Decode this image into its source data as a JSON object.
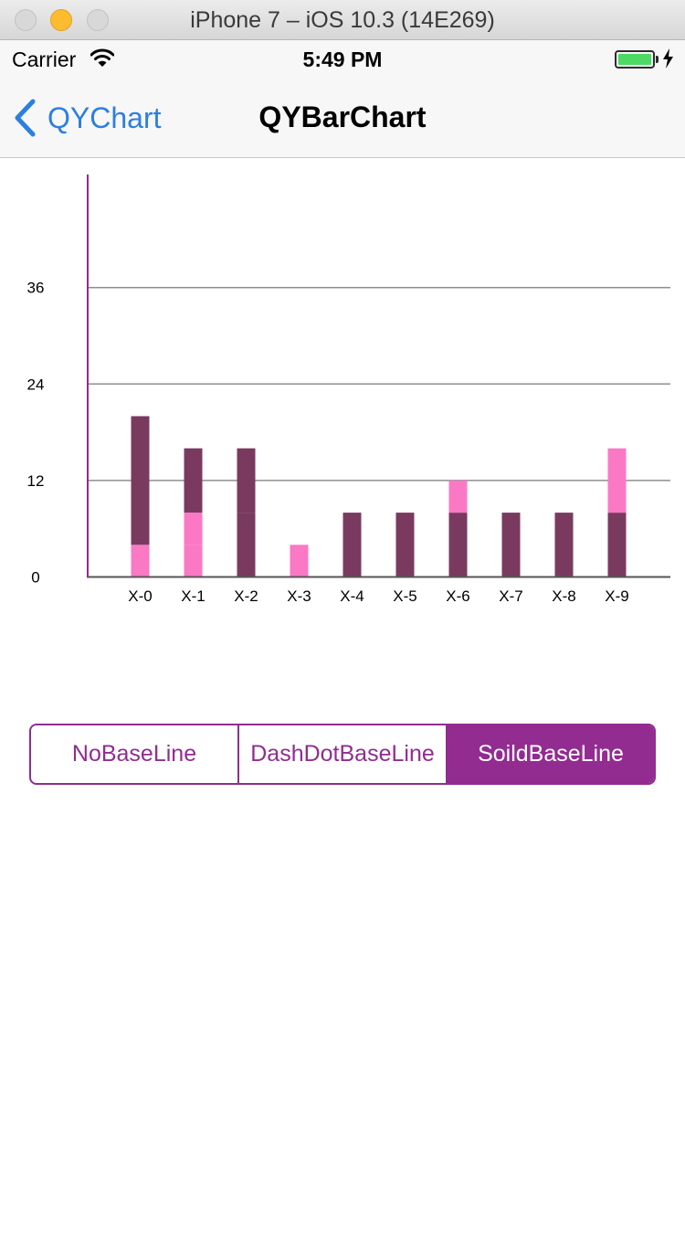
{
  "window": {
    "title": "iPhone 7 – iOS 10.3 (14E269)"
  },
  "status_bar": {
    "carrier": "Carrier",
    "time": "5:49 PM"
  },
  "nav": {
    "back_label": "QYChart",
    "title": "QYBarChart"
  },
  "colors": {
    "accent": "#922c90",
    "dark_bar": "#7a3a5f",
    "light_bar": "#fb78c5",
    "ios_blue": "#2c7fdf"
  },
  "chart_data": {
    "type": "bar",
    "stacked": true,
    "categories": [
      "X-0",
      "X-1",
      "X-2",
      "X-3",
      "X-4",
      "X-5",
      "X-6",
      "X-7",
      "X-8",
      "X-9"
    ],
    "y_ticks": [
      "0",
      "12",
      "24",
      "36"
    ],
    "ylim": [
      0,
      50
    ],
    "grid": true,
    "series": [
      {
        "color": "#fb78c5",
        "values": [
          4,
          4,
          0,
          4,
          0,
          0,
          0,
          0,
          0,
          0
        ]
      },
      {
        "color": "#7a3a5f",
        "values": [
          16,
          0,
          8,
          0,
          8,
          8,
          8,
          8,
          8,
          8
        ]
      },
      {
        "color": "#fb78c5",
        "values": [
          0,
          4,
          0,
          0,
          0,
          0,
          0,
          0,
          0,
          0
        ]
      },
      {
        "color": "#7a3a5f",
        "values": [
          0,
          8,
          8,
          0,
          0,
          0,
          0,
          0,
          0,
          0
        ]
      },
      {
        "color": "#fb78c5",
        "values": [
          0,
          0,
          0,
          0,
          0,
          0,
          4,
          0,
          0,
          8
        ]
      }
    ]
  },
  "segments": [
    {
      "label": "NoBaseLine",
      "selected": false
    },
    {
      "label": "DashDotBaseLine",
      "selected": false
    },
    {
      "label": "SoildBaseLine",
      "selected": true
    }
  ]
}
